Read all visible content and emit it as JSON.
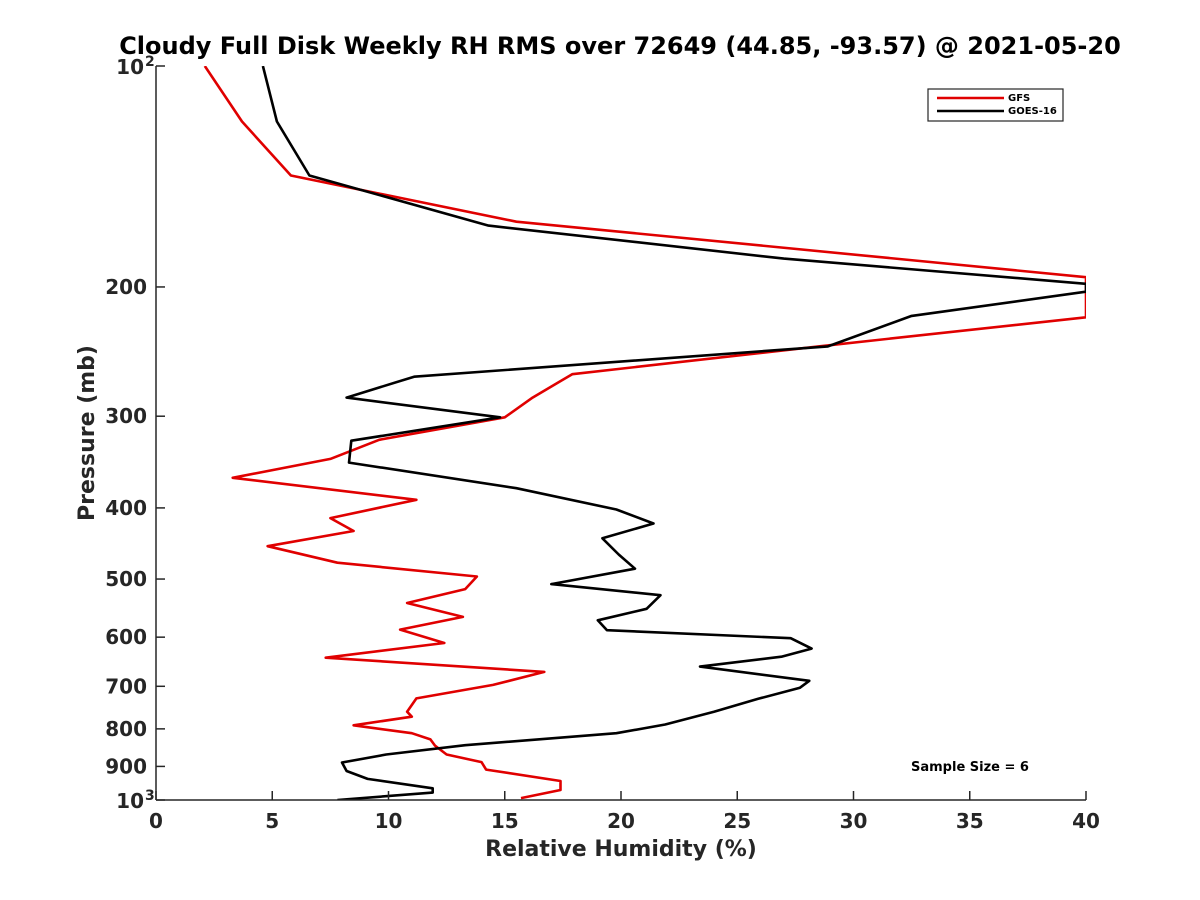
{
  "chart_data": {
    "type": "line",
    "title": "Cloudy Full Disk Weekly RH RMS over 72649 (44.85, -93.57) @ 2021-05-20",
    "xlabel": "Relative Humidity (%)",
    "ylabel": "Pressure (mb)",
    "xlim": [
      0,
      40
    ],
    "ylim": [
      100,
      1000
    ],
    "y_scale": "log",
    "y_reversed": true,
    "x_ticks": [
      "0",
      "5",
      "10",
      "15",
      "20",
      "25",
      "30",
      "35",
      "40"
    ],
    "y_ticks": [
      {
        "value": 100,
        "label": "10",
        "sup": "2"
      },
      {
        "value": 200,
        "label": "200",
        "sup": ""
      },
      {
        "value": 300,
        "label": "300",
        "sup": ""
      },
      {
        "value": 400,
        "label": "400",
        "sup": ""
      },
      {
        "value": 500,
        "label": "500",
        "sup": ""
      },
      {
        "value": 600,
        "label": "600",
        "sup": ""
      },
      {
        "value": 700,
        "label": "700",
        "sup": ""
      },
      {
        "value": 800,
        "label": "800",
        "sup": ""
      },
      {
        "value": 900,
        "label": "900",
        "sup": ""
      },
      {
        "value": 1000,
        "label": "10",
        "sup": "3"
      }
    ],
    "legend": {
      "position": "top-right"
    },
    "annotation": "Sample Size = 6",
    "series": [
      {
        "name": "GFS",
        "color": "#e00000",
        "points": [
          [
            2.1,
            100
          ],
          [
            3.7,
            119
          ],
          [
            5.8,
            141
          ],
          [
            15.5,
            163
          ],
          [
            40,
            194
          ],
          [
            40,
            220
          ],
          [
            28.5,
            241
          ],
          [
            17.9,
            263
          ],
          [
            16.2,
            283
          ],
          [
            15.0,
            301
          ],
          [
            9.6,
            323
          ],
          [
            7.5,
            343
          ],
          [
            3.3,
            364
          ],
          [
            11.2,
            390
          ],
          [
            7.5,
            413
          ],
          [
            8.5,
            430
          ],
          [
            4.8,
            451
          ],
          [
            7.8,
            475
          ],
          [
            13.8,
            496
          ],
          [
            13.3,
            516
          ],
          [
            10.8,
            539
          ],
          [
            13.2,
            563
          ],
          [
            10.5,
            586
          ],
          [
            12.4,
            611
          ],
          [
            7.3,
            640
          ],
          [
            16.7,
            669
          ],
          [
            14.5,
            697
          ],
          [
            11.2,
            727
          ],
          [
            10.8,
            758
          ],
          [
            11.0,
            770
          ],
          [
            8.5,
            791
          ],
          [
            11.0,
            811
          ],
          [
            11.8,
            827
          ],
          [
            12.0,
            843
          ],
          [
            12.5,
            867
          ],
          [
            14.0,
            888
          ],
          [
            14.2,
            909
          ],
          [
            17.4,
            942
          ],
          [
            17.4,
            969
          ],
          [
            15.7,
            994
          ]
        ]
      },
      {
        "name": "GOES-16",
        "color": "#000000",
        "points": [
          [
            4.6,
            100
          ],
          [
            5.2,
            119
          ],
          [
            6.6,
            141
          ],
          [
            14.3,
            165
          ],
          [
            27.0,
            183
          ],
          [
            40,
            198
          ],
          [
            40,
            203
          ],
          [
            32.5,
            219
          ],
          [
            28.9,
            241
          ],
          [
            11.1,
            265
          ],
          [
            8.2,
            283
          ],
          [
            14.8,
            301
          ],
          [
            8.4,
            324
          ],
          [
            8.3,
            347
          ],
          [
            15.5,
            376
          ],
          [
            19.8,
            402
          ],
          [
            21.4,
            420
          ],
          [
            19.2,
            440
          ],
          [
            19.9,
            463
          ],
          [
            20.6,
            484
          ],
          [
            17.0,
            508
          ],
          [
            21.7,
            526
          ],
          [
            21.1,
            549
          ],
          [
            19.0,
            569
          ],
          [
            19.4,
            587
          ],
          [
            27.3,
            602
          ],
          [
            28.2,
            622
          ],
          [
            26.9,
            638
          ],
          [
            23.4,
            658
          ],
          [
            28.1,
            688
          ],
          [
            27.7,
            703
          ],
          [
            25.9,
            728
          ],
          [
            24.0,
            758
          ],
          [
            21.9,
            789
          ],
          [
            19.8,
            811
          ],
          [
            13.3,
            842
          ],
          [
            9.9,
            867
          ],
          [
            8.0,
            889
          ],
          [
            8.2,
            913
          ],
          [
            9.1,
            936
          ],
          [
            11.9,
            964
          ],
          [
            11.9,
            977
          ],
          [
            7.8,
            1000
          ]
        ]
      }
    ]
  }
}
